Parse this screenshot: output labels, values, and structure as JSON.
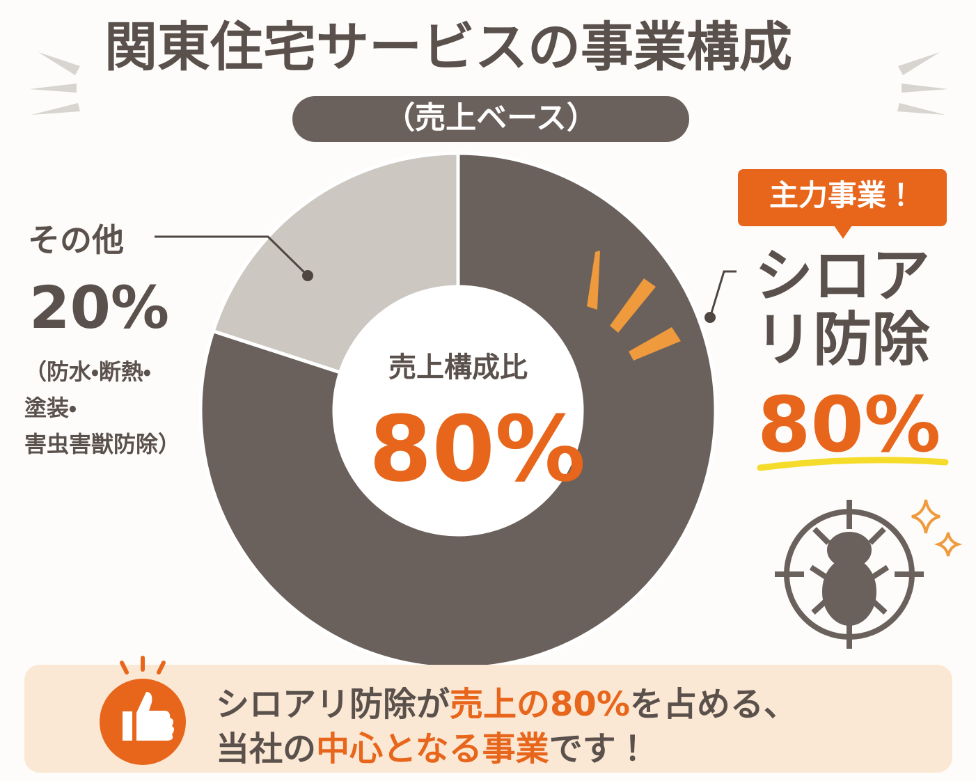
{
  "chart_data": {
    "type": "pie",
    "title": "関東住宅サービスの事業構成",
    "subtitle": "（売上ベース）",
    "center_label": "売上構成比",
    "categories": [
      "シロアリ防除",
      "その他"
    ],
    "values": [
      80,
      20
    ],
    "value_labels": [
      "80%",
      "20%"
    ],
    "colors": [
      "#6b615c",
      "#ccc7c1"
    ],
    "badge": "主力事業！",
    "other_note": [
      "（防水・断熱・",
      "塗装・",
      "害虫害獣防除）"
    ]
  },
  "message": {
    "lines": [
      [
        {
          "text": "シロアリ防除が",
          "highlight": false
        },
        {
          "text": "売上の80%",
          "highlight": true
        },
        {
          "text": "を占める、",
          "highlight": false
        }
      ],
      [
        {
          "text": "当社の",
          "highlight": false
        },
        {
          "text": "中心となる事業",
          "highlight": true
        },
        {
          "text": "です！",
          "highlight": false
        }
      ]
    ]
  }
}
